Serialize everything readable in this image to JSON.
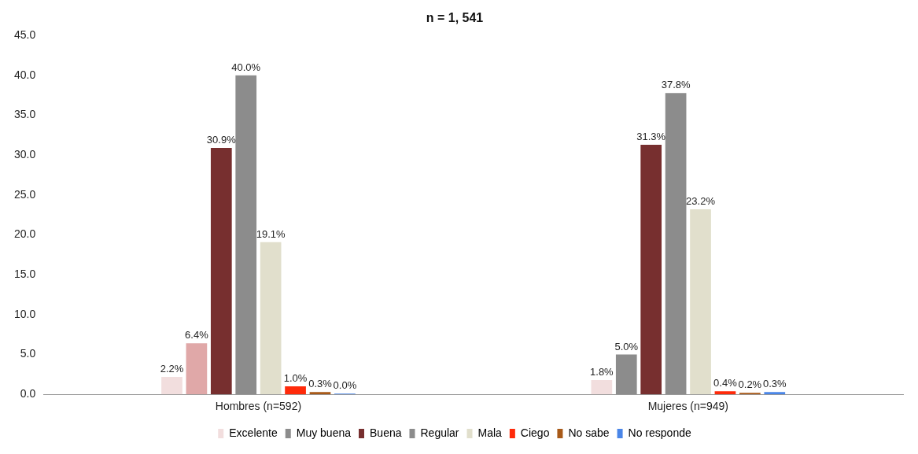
{
  "chart_data": {
    "type": "bar",
    "title": "n = 1, 541",
    "categories": [
      "Hombres (n=592)",
      "Mujeres (n=949)"
    ],
    "series": [
      {
        "name": "Excelente",
        "color": "#f2dede",
        "values": [
          2.2,
          1.8
        ],
        "value_labels": [
          "2.2%",
          "1.8%"
        ]
      },
      {
        "name": "Muy buena",
        "color": "#8c8c8c",
        "colors": [
          "#e0a8a8",
          "#8c8c8c"
        ],
        "values": [
          6.4,
          5.0
        ],
        "value_labels": [
          "6.4%",
          "5.0%"
        ]
      },
      {
        "name": "Buena",
        "color": "#772f2f",
        "values": [
          30.9,
          31.3
        ],
        "value_labels": [
          "30.9%",
          "31.3%"
        ]
      },
      {
        "name": "Regular",
        "color": "#8c8c8c",
        "values": [
          40.0,
          37.8
        ],
        "value_labels": [
          "40.0%",
          "37.8%"
        ]
      },
      {
        "name": "Mala",
        "color": "#e1dfcc",
        "values": [
          19.1,
          23.2
        ],
        "value_labels": [
          "19.1%",
          "23.2%"
        ]
      },
      {
        "name": "Ciego",
        "color": "#ff2a0a",
        "values": [
          1.0,
          0.4
        ],
        "value_labels": [
          "1.0%",
          "0.4%"
        ]
      },
      {
        "name": "No sabe",
        "color": "#a85a18",
        "values": [
          0.3,
          0.2
        ],
        "value_labels": [
          "0.3%",
          "0.2%"
        ]
      },
      {
        "name": "No responde",
        "color": "#4a86e8",
        "values": [
          0.0,
          0.3
        ],
        "value_labels": [
          "0.0%",
          "0.3%"
        ]
      }
    ],
    "ylim": [
      0,
      45
    ],
    "yticks": [
      {
        "value": 0,
        "label": "0.0"
      },
      {
        "value": 5,
        "label": "5.0"
      },
      {
        "value": 10,
        "label": "10.0"
      },
      {
        "value": 15,
        "label": "15.0"
      },
      {
        "value": 20,
        "label": "20.0"
      },
      {
        "value": 25,
        "label": "25.0"
      },
      {
        "value": 30,
        "label": "30.0"
      },
      {
        "value": 35,
        "label": "35.0"
      },
      {
        "value": 40,
        "label": "40.0"
      },
      {
        "value": 45,
        "label": "45.0"
      }
    ],
    "grid": false,
    "legend": "bottom"
  }
}
